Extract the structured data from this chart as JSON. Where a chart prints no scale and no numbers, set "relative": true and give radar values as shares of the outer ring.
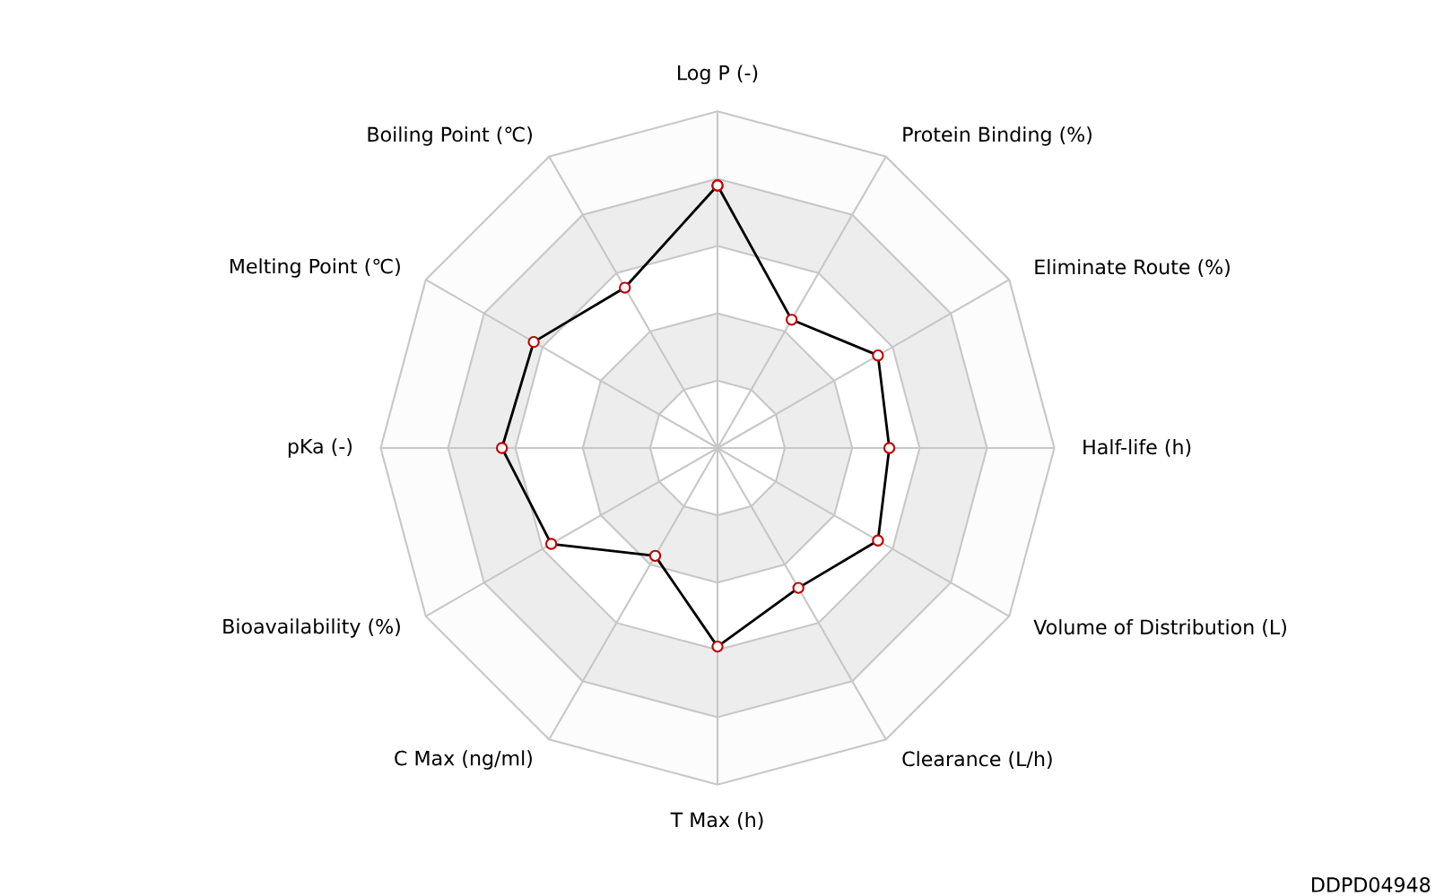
{
  "chart_data": {
    "type": "radar",
    "relative": true,
    "grid": true,
    "marker": "circle",
    "categories": [
      "Log P (-)",
      "Protein Binding (%)",
      "Eliminate Route (%)",
      "Half-life (h)",
      "Volume of Distribution (L)",
      "Clearance (L/h)",
      "T Max (h)",
      "C Max (ng/ml)",
      "Bioavailability (%)",
      "pKa (-)",
      "Melting Point (℃)",
      "Boiling Point (℃)"
    ],
    "series": [
      {
        "color": "#000000",
        "values": [
          0.78,
          0.44,
          0.55,
          0.51,
          0.55,
          0.48,
          0.59,
          0.37,
          0.57,
          0.64,
          0.63,
          0.55
        ]
      }
    ],
    "annotations": [
      "DDPD04948"
    ]
  }
}
